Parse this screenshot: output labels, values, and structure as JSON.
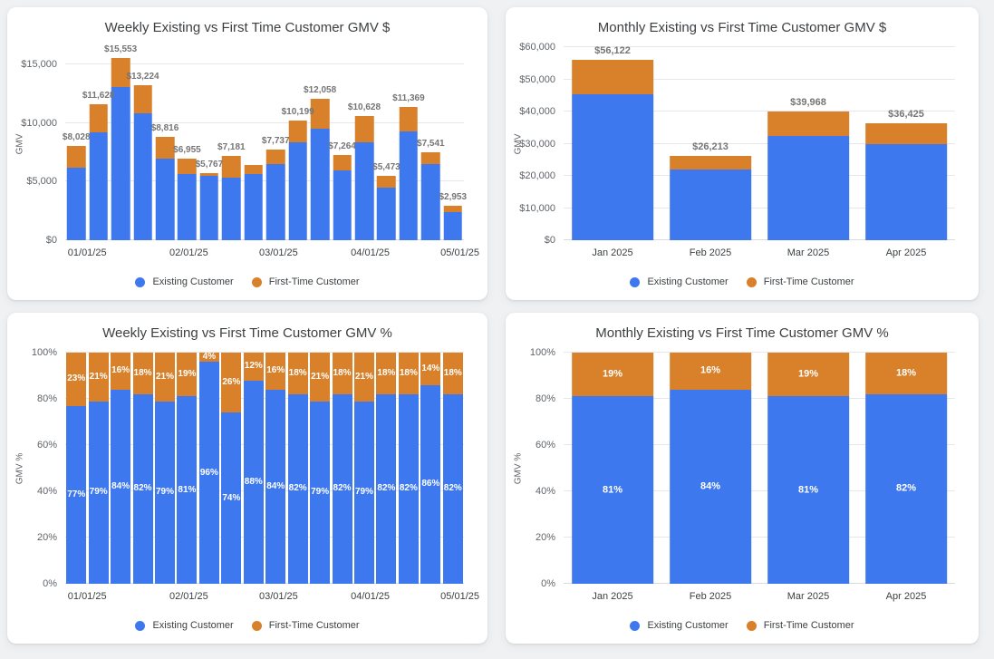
{
  "page": {
    "background": "#eff1f3",
    "card_background": "#ffffff"
  },
  "colors": {
    "existing": "#3e78ef",
    "first_time": "#d8812a",
    "grid": "#e5e7ea",
    "title_text": "#3c4043",
    "axis_text": "#5f6368",
    "data_label": "#757575",
    "segment_label": "#ffffff"
  },
  "chart_data": [
    {
      "type": "bar",
      "stacked": true,
      "title": "Weekly Existing vs First Time Customer GMV $",
      "ylabel": "GMV",
      "ylim": [
        0,
        16500
      ],
      "grid": true,
      "legend_position": "bottom",
      "bar_width_frac": 0.84,
      "label_size": 10,
      "yticks": [
        {
          "v": 0,
          "label": "$0"
        },
        {
          "v": 5000,
          "label": "$5,000"
        },
        {
          "v": 10000,
          "label": "$10,000"
        },
        {
          "v": 15000,
          "label": "$15,000"
        }
      ],
      "xticks": [
        {
          "label": "01/01/25",
          "pos": 5.5
        },
        {
          "label": "02/01/25",
          "pos": 31
        },
        {
          "label": "03/01/25",
          "pos": 53.5
        },
        {
          "label": "04/01/25",
          "pos": 76.5
        },
        {
          "label": "05/01/25",
          "pos": 99
        }
      ],
      "series": [
        {
          "name": "Existing Customer",
          "key": "existing",
          "values": [
            6182,
            9186,
            13065,
            10844,
            6965,
            5634,
            5536,
            5314,
            5632,
            6499,
            8363,
            9526,
            5957,
            8396,
            4488,
            9323,
            6485,
            2421
          ]
        },
        {
          "name": "First-Time Customer",
          "key": "first_time",
          "values": [
            1846,
            2442,
            2488,
            2380,
            1851,
            1321,
            231,
            1867,
            768,
            1238,
            1836,
            2532,
            1307,
            2232,
            985,
            2046,
            1056,
            532
          ]
        }
      ],
      "total_labels": [
        "$8,028",
        "$11,628",
        "$15,553",
        "$13,224",
        "$8,816",
        "$6,955",
        "$5,767",
        "$7,181",
        null,
        "$7,737",
        "$10,199",
        "$12,058",
        "$7,264",
        "$10,628",
        "$5,473",
        "$11,369",
        "$7,541",
        "$2,953"
      ],
      "segment_labels": false
    },
    {
      "type": "bar",
      "stacked": true,
      "title": "Monthly Existing vs First Time Customer GMV $",
      "ylabel": "GMV",
      "ylim": [
        0,
        60000
      ],
      "grid": true,
      "legend_position": "bottom",
      "bar_width_frac": 0.83,
      "label_size": 11,
      "yticks": [
        {
          "v": 0,
          "label": "$0"
        },
        {
          "v": 10000,
          "label": "$10,000"
        },
        {
          "v": 20000,
          "label": "$20,000"
        },
        {
          "v": 30000,
          "label": "$30,000"
        },
        {
          "v": 40000,
          "label": "$40,000"
        },
        {
          "v": 50000,
          "label": "$50,000"
        },
        {
          "v": 60000,
          "label": "$60,000"
        }
      ],
      "xticks": [
        {
          "label": "Jan 2025",
          "pos": 12.5
        },
        {
          "label": "Feb 2025",
          "pos": 37.5
        },
        {
          "label": "Mar 2025",
          "pos": 62.5
        },
        {
          "label": "Apr 2025",
          "pos": 87.5
        }
      ],
      "series": [
        {
          "name": "Existing Customer",
          "key": "existing",
          "values": [
            45459,
            22019,
            32374,
            29869
          ]
        },
        {
          "name": "First-Time Customer",
          "key": "first_time",
          "values": [
            10663,
            4194,
            7594,
            6556
          ]
        }
      ],
      "total_labels": [
        "$56,122",
        "$26,213",
        "$39,968",
        "$36,425"
      ],
      "segment_labels": false
    },
    {
      "type": "bar",
      "stacked": true,
      "title": "Weekly Existing vs First Time Customer GMV %",
      "ylabel": "GMV %",
      "ylim": [
        0,
        100
      ],
      "grid": true,
      "legend_position": "bottom",
      "bar_width_frac": 0.9,
      "label_size": 10,
      "yticks": [
        {
          "v": 0,
          "label": "0%"
        },
        {
          "v": 20,
          "label": "20%"
        },
        {
          "v": 40,
          "label": "40%"
        },
        {
          "v": 60,
          "label": "60%"
        },
        {
          "v": 80,
          "label": "80%"
        },
        {
          "v": 100,
          "label": "100%"
        }
      ],
      "xticks": [
        {
          "label": "01/01/25",
          "pos": 5.5
        },
        {
          "label": "02/01/25",
          "pos": 31
        },
        {
          "label": "03/01/25",
          "pos": 53.5
        },
        {
          "label": "04/01/25",
          "pos": 76.5
        },
        {
          "label": "05/01/25",
          "pos": 99
        }
      ],
      "series": [
        {
          "name": "Existing Customer",
          "key": "existing",
          "values": [
            77,
            79,
            84,
            82,
            79,
            81,
            96,
            74,
            88,
            84,
            82,
            79,
            82,
            79,
            82,
            82,
            86,
            82
          ]
        },
        {
          "name": "First-Time Customer",
          "key": "first_time",
          "values": [
            23,
            21,
            16,
            18,
            21,
            19,
            4,
            26,
            12,
            16,
            18,
            21,
            18,
            21,
            18,
            18,
            14,
            18
          ]
        }
      ],
      "total_labels": null,
      "segment_labels": true
    },
    {
      "type": "bar",
      "stacked": true,
      "title": "Monthly Existing vs First Time Customer GMV %",
      "ylabel": "GMV %",
      "ylim": [
        0,
        100
      ],
      "grid": true,
      "legend_position": "bottom",
      "bar_width_frac": 0.83,
      "label_size": 11,
      "yticks": [
        {
          "v": 0,
          "label": "0%"
        },
        {
          "v": 20,
          "label": "20%"
        },
        {
          "v": 40,
          "label": "40%"
        },
        {
          "v": 60,
          "label": "60%"
        },
        {
          "v": 80,
          "label": "80%"
        },
        {
          "v": 100,
          "label": "100%"
        }
      ],
      "xticks": [
        {
          "label": "Jan 2025",
          "pos": 12.5
        },
        {
          "label": "Feb 2025",
          "pos": 37.5
        },
        {
          "label": "Mar 2025",
          "pos": 62.5
        },
        {
          "label": "Apr 2025",
          "pos": 87.5
        }
      ],
      "series": [
        {
          "name": "Existing Customer",
          "key": "existing",
          "values": [
            81,
            84,
            81,
            82
          ]
        },
        {
          "name": "First-Time Customer",
          "key": "first_time",
          "values": [
            19,
            16,
            19,
            18
          ]
        }
      ],
      "total_labels": null,
      "segment_labels": true
    }
  ]
}
